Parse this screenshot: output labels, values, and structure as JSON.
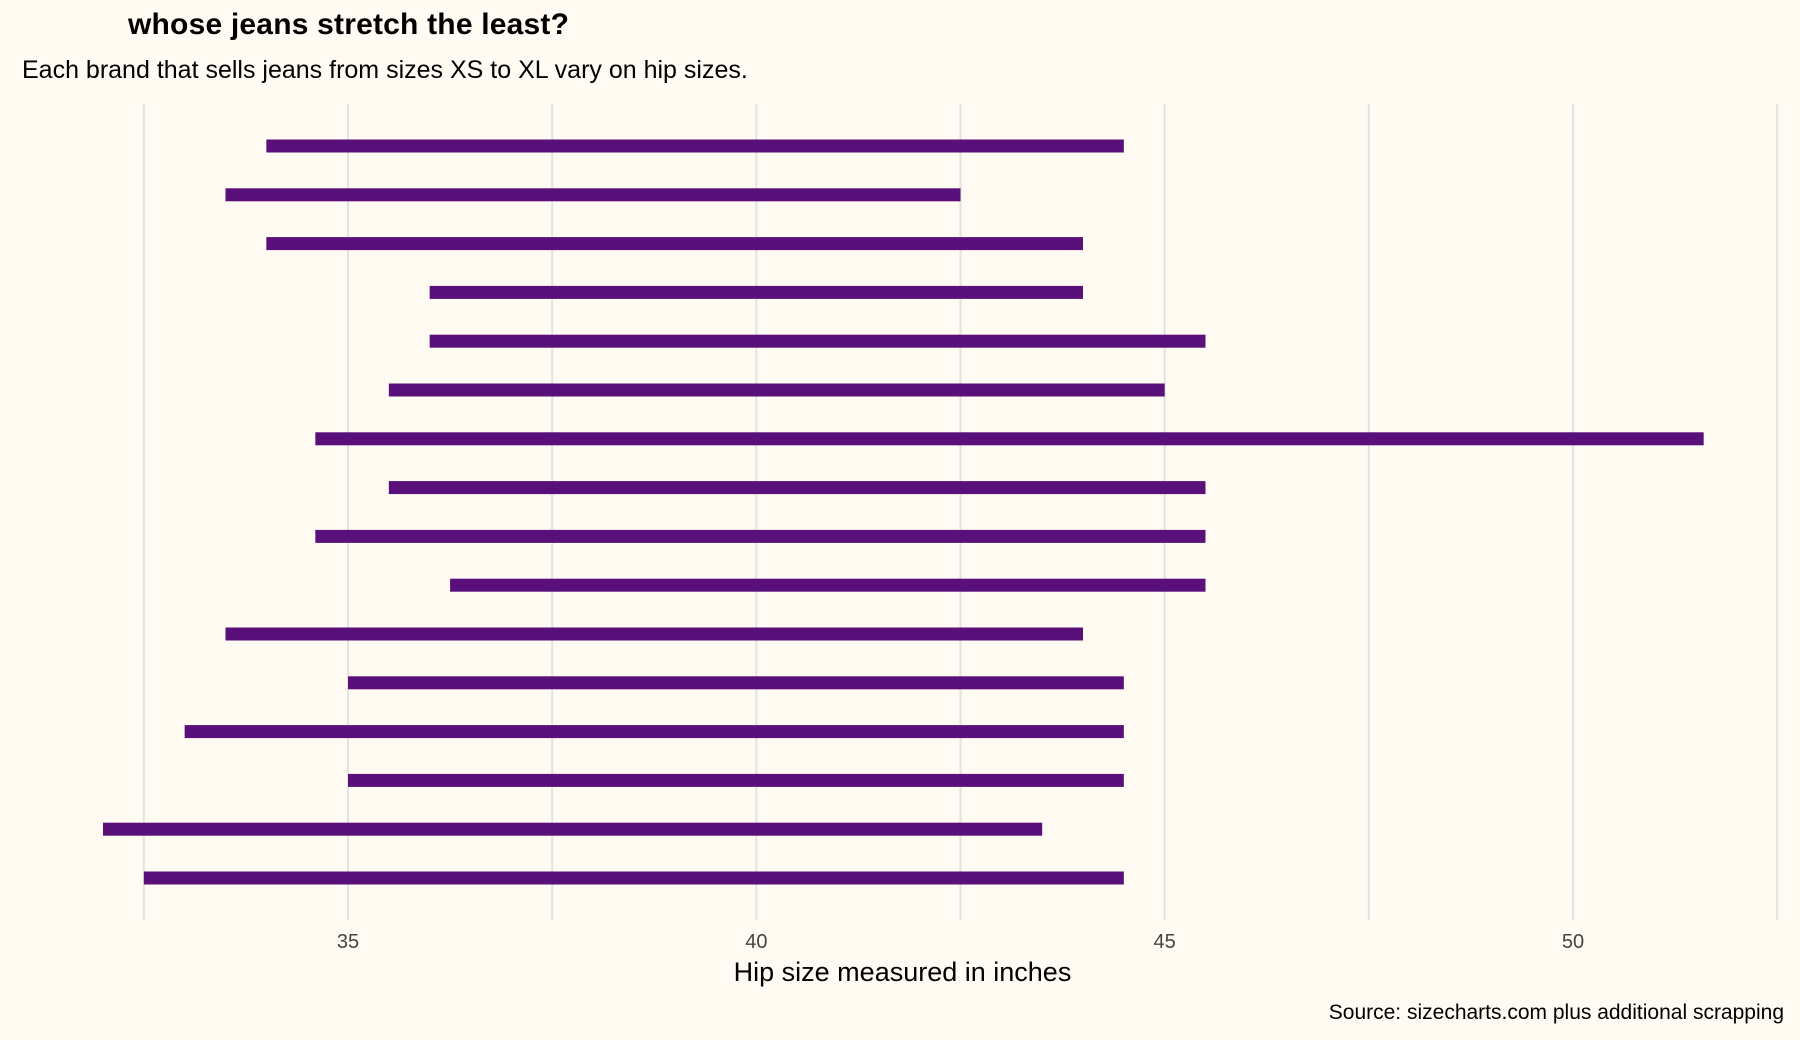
{
  "chart_data": {
    "type": "range_bar",
    "title": "whose jeans stretch the least?",
    "subtitle": "Each brand that sells jeans from sizes XS to XL vary on hip sizes.",
    "xlabel": "Hip size measured in inches",
    "caption": "Source: sizecharts.com plus additional scrapping",
    "x_ticks": [
      35,
      40,
      45,
      50
    ],
    "x_tick_labels": [
      "35",
      "40",
      "45",
      "50"
    ],
    "xlim": [
      32.0,
      52.5
    ],
    "grid": "vertical",
    "bar_color": "#59107A",
    "grid_color": "#E3E3E3",
    "ranges": [
      {
        "start": 34.0,
        "end": 44.5
      },
      {
        "start": 33.5,
        "end": 42.5
      },
      {
        "start": 34.0,
        "end": 44.0
      },
      {
        "start": 36.0,
        "end": 44.0
      },
      {
        "start": 36.0,
        "end": 45.5
      },
      {
        "start": 35.5,
        "end": 45.0
      },
      {
        "start": 34.6,
        "end": 51.6
      },
      {
        "start": 35.5,
        "end": 45.5
      },
      {
        "start": 34.6,
        "end": 45.5
      },
      {
        "start": 36.25,
        "end": 45.5
      },
      {
        "start": 33.5,
        "end": 44.0
      },
      {
        "start": 35.0,
        "end": 44.5
      },
      {
        "start": 33.0,
        "end": 44.5
      },
      {
        "start": 35.0,
        "end": 44.5
      },
      {
        "start": 32.0,
        "end": 43.5
      },
      {
        "start": 32.5,
        "end": 44.5
      }
    ]
  }
}
